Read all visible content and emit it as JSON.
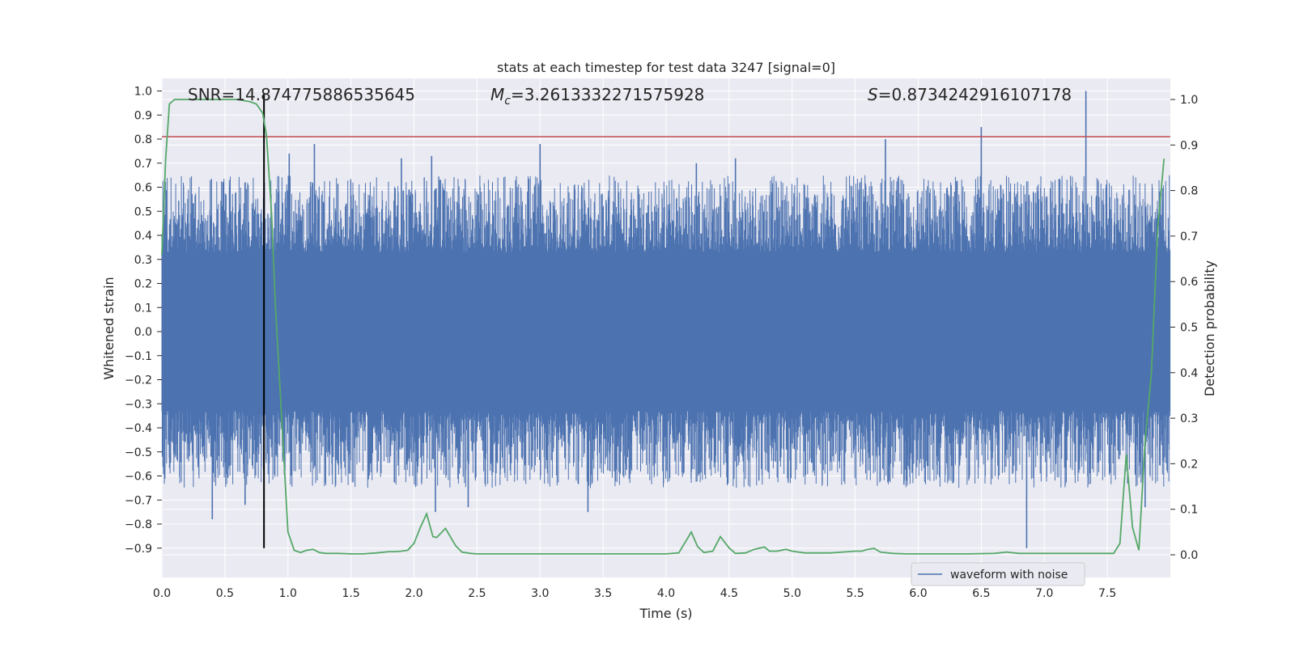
{
  "chart_data": {
    "type": "line",
    "title": "stats at each timestep for test data 3247 [signal=0]",
    "xlabel": "Time (s)",
    "ylabel": "Whitened strain",
    "y2label": "Detection probability",
    "xlim": [
      0.0,
      8.0
    ],
    "ylim": [
      -1.0,
      1.05
    ],
    "y2lim": [
      -0.045,
      1.045
    ],
    "x_ticks": [
      0.0,
      0.5,
      1.0,
      1.5,
      2.0,
      2.5,
      3.0,
      3.5,
      4.0,
      4.5,
      5.0,
      5.5,
      6.0,
      6.5,
      7.0,
      7.5
    ],
    "x_tick_labels": [
      "0.0",
      "0.5",
      "1.0",
      "1.5",
      "2.0",
      "2.5",
      "3.0",
      "3.5",
      "4.0",
      "4.5",
      "5.0",
      "5.5",
      "6.0",
      "6.5",
      "7.0",
      "7.5"
    ],
    "y_ticks": [
      -0.9,
      -0.8,
      -0.7,
      -0.6,
      -0.5,
      -0.4,
      -0.3,
      -0.2,
      -0.1,
      0.0,
      0.1,
      0.2,
      0.3,
      0.4,
      0.5,
      0.6,
      0.7,
      0.8,
      0.9,
      1.0
    ],
    "y_tick_labels": [
      "−0.9",
      "−0.8",
      "−0.7",
      "−0.6",
      "−0.5",
      "−0.4",
      "−0.3",
      "−0.2",
      "−0.1",
      "0.0",
      "0.1",
      "0.2",
      "0.3",
      "0.4",
      "0.5",
      "0.6",
      "0.7",
      "0.8",
      "0.9",
      "1.0"
    ],
    "y2_ticks": [
      0.0,
      0.1,
      0.2,
      0.3,
      0.4,
      0.5,
      0.6,
      0.7,
      0.8,
      0.9,
      1.0
    ],
    "y2_tick_labels": [
      "0.0",
      "0.1",
      "0.2",
      "0.3",
      "0.4",
      "0.5",
      "0.6",
      "0.7",
      "0.8",
      "0.9",
      "1.0"
    ],
    "grid": true,
    "legend_position": "bottom-right",
    "annotations": {
      "snr": "SNR=14.874775886535645",
      "mc_symbol": "M",
      "mc_sub": "c",
      "mc_value": "=3.2613332271575928",
      "s_symbol": "S",
      "s_value": "=0.8734242916107178"
    },
    "threshold_y": 0.81,
    "vline_x": 0.81,
    "series": [
      {
        "name": "waveform with noise",
        "axis": "left",
        "color": "#4c72b0",
        "noise_envelope": {
          "core_min": -0.33,
          "core_max": 0.33,
          "typical_max": 0.55,
          "typical_min": -0.55
        },
        "peaks": [
          {
            "x": 0.4,
            "y": -0.78
          },
          {
            "x": 0.66,
            "y": -0.72
          },
          {
            "x": 1.01,
            "y": 0.74
          },
          {
            "x": 1.21,
            "y": 0.78
          },
          {
            "x": 1.9,
            "y": 0.72
          },
          {
            "x": 2.14,
            "y": 0.73
          },
          {
            "x": 2.17,
            "y": -0.75
          },
          {
            "x": 2.43,
            "y": -0.73
          },
          {
            "x": 3.0,
            "y": 0.78
          },
          {
            "x": 3.38,
            "y": -0.75
          },
          {
            "x": 4.24,
            "y": 0.7
          },
          {
            "x": 4.55,
            "y": 0.72
          },
          {
            "x": 5.74,
            "y": 0.8
          },
          {
            "x": 6.5,
            "y": 0.85
          },
          {
            "x": 6.86,
            "y": -0.9
          },
          {
            "x": 7.33,
            "y": 1.0
          },
          {
            "x": 7.8,
            "y": -0.73
          }
        ]
      },
      {
        "name": "",
        "axis": "right",
        "color": "#55a868",
        "x": [
          0.0,
          0.03,
          0.06,
          0.1,
          0.2,
          0.3,
          0.4,
          0.5,
          0.6,
          0.7,
          0.75,
          0.8,
          0.83,
          0.87,
          0.9,
          0.95,
          1.0,
          1.05,
          1.1,
          1.15,
          1.2,
          1.25,
          1.3,
          1.4,
          1.5,
          1.6,
          1.7,
          1.8,
          1.85,
          1.9,
          1.95,
          2.0,
          2.05,
          2.1,
          2.15,
          2.18,
          2.25,
          2.33,
          2.38,
          2.45,
          2.5,
          2.6,
          2.7,
          2.8,
          3.0,
          3.2,
          3.4,
          3.6,
          3.8,
          4.0,
          4.1,
          4.2,
          4.25,
          4.3,
          4.37,
          4.43,
          4.5,
          4.55,
          4.63,
          4.7,
          4.78,
          4.82,
          4.88,
          4.95,
          5.0,
          5.1,
          5.2,
          5.3,
          5.4,
          5.5,
          5.55,
          5.6,
          5.65,
          5.7,
          5.8,
          5.9,
          6.0,
          6.2,
          6.4,
          6.6,
          6.7,
          6.8,
          6.9,
          7.0,
          7.2,
          7.4,
          7.55,
          7.6,
          7.65,
          7.7,
          7.75,
          7.8,
          7.85,
          7.9,
          7.95
        ],
        "y": [
          0.66,
          0.87,
          0.99,
          1.0,
          1.0,
          1.0,
          1.0,
          1.0,
          1.0,
          0.995,
          0.99,
          0.97,
          0.92,
          0.75,
          0.55,
          0.3,
          0.05,
          0.01,
          0.005,
          0.01,
          0.012,
          0.005,
          0.003,
          0.003,
          0.002,
          0.002,
          0.004,
          0.007,
          0.007,
          0.008,
          0.01,
          0.025,
          0.06,
          0.09,
          0.04,
          0.038,
          0.058,
          0.02,
          0.006,
          0.003,
          0.002,
          0.002,
          0.002,
          0.002,
          0.002,
          0.002,
          0.002,
          0.002,
          0.002,
          0.002,
          0.004,
          0.05,
          0.018,
          0.005,
          0.008,
          0.04,
          0.015,
          0.003,
          0.004,
          0.012,
          0.017,
          0.008,
          0.008,
          0.012,
          0.008,
          0.004,
          0.004,
          0.004,
          0.006,
          0.008,
          0.008,
          0.012,
          0.014,
          0.006,
          0.003,
          0.002,
          0.002,
          0.002,
          0.002,
          0.003,
          0.006,
          0.003,
          0.003,
          0.003,
          0.003,
          0.003,
          0.003,
          0.025,
          0.22,
          0.06,
          0.01,
          0.25,
          0.4,
          0.72,
          0.87
        ]
      }
    ]
  }
}
